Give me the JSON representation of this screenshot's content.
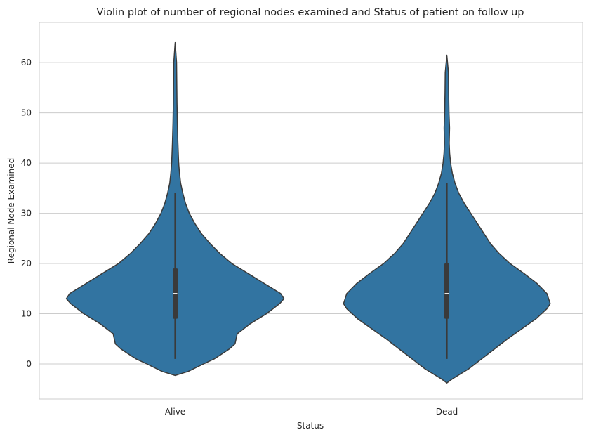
{
  "chart_data": {
    "type": "violin",
    "title": "Violin plot of number of regional nodes examined and Status of patient on follow up",
    "xlabel": "Status",
    "ylabel": "Regional Node Examined",
    "categories": [
      "Alive",
      "Dead"
    ],
    "ylim": [
      -7,
      68
    ],
    "yticks": [
      0,
      10,
      20,
      30,
      40,
      50,
      60
    ],
    "grid": "horizontal",
    "colors": {
      "violin_fill": "#3274a1",
      "outline": "#3a3a3a",
      "box": "#3a3a3a",
      "median": "#ffffff"
    },
    "violins": [
      {
        "category": "Alive",
        "min": 1,
        "q1": 9,
        "median": 14,
        "q3": 19,
        "max": 34,
        "extent": [
          -2.3,
          64
        ],
        "density": [
          [
            -2.3,
            0.0
          ],
          [
            -1.5,
            0.12
          ],
          [
            0,
            0.26
          ],
          [
            1,
            0.36
          ],
          [
            2,
            0.43
          ],
          [
            3,
            0.5
          ],
          [
            4,
            0.55
          ],
          [
            6,
            0.57
          ],
          [
            8,
            0.69
          ],
          [
            10,
            0.84
          ],
          [
            12,
            0.96
          ],
          [
            13,
            1.0
          ],
          [
            14,
            0.97
          ],
          [
            16,
            0.82
          ],
          [
            18,
            0.67
          ],
          [
            20,
            0.52
          ],
          [
            22,
            0.41
          ],
          [
            24,
            0.32
          ],
          [
            26,
            0.24
          ],
          [
            28,
            0.18
          ],
          [
            30,
            0.13
          ],
          [
            32,
            0.095
          ],
          [
            34,
            0.07
          ],
          [
            36,
            0.05
          ],
          [
            38,
            0.04
          ],
          [
            40,
            0.032
          ],
          [
            44,
            0.025
          ],
          [
            48,
            0.02
          ],
          [
            52,
            0.017
          ],
          [
            56,
            0.015
          ],
          [
            60,
            0.013
          ],
          [
            64,
            0.0
          ]
        ]
      },
      {
        "category": "Dead",
        "min": 1,
        "q1": 9,
        "median": 14,
        "q3": 20,
        "max": 36,
        "extent": [
          -3.8,
          61.5
        ],
        "density": [
          [
            -3.8,
            0.0
          ],
          [
            -3,
            0.05
          ],
          [
            -1,
            0.2
          ],
          [
            1,
            0.32
          ],
          [
            3,
            0.44
          ],
          [
            5,
            0.56
          ],
          [
            7,
            0.69
          ],
          [
            9,
            0.82
          ],
          [
            11,
            0.92
          ],
          [
            12,
            0.95
          ],
          [
            14,
            0.92
          ],
          [
            16,
            0.83
          ],
          [
            18,
            0.71
          ],
          [
            20,
            0.58
          ],
          [
            22,
            0.48
          ],
          [
            24,
            0.4
          ],
          [
            26,
            0.34
          ],
          [
            28,
            0.28
          ],
          [
            30,
            0.22
          ],
          [
            32,
            0.16
          ],
          [
            34,
            0.11
          ],
          [
            36,
            0.075
          ],
          [
            38,
            0.05
          ],
          [
            40,
            0.035
          ],
          [
            42,
            0.026
          ],
          [
            44,
            0.022
          ],
          [
            47,
            0.025
          ],
          [
            50,
            0.02
          ],
          [
            54,
            0.017
          ],
          [
            58,
            0.015
          ],
          [
            61.5,
            0.0
          ]
        ]
      }
    ]
  }
}
